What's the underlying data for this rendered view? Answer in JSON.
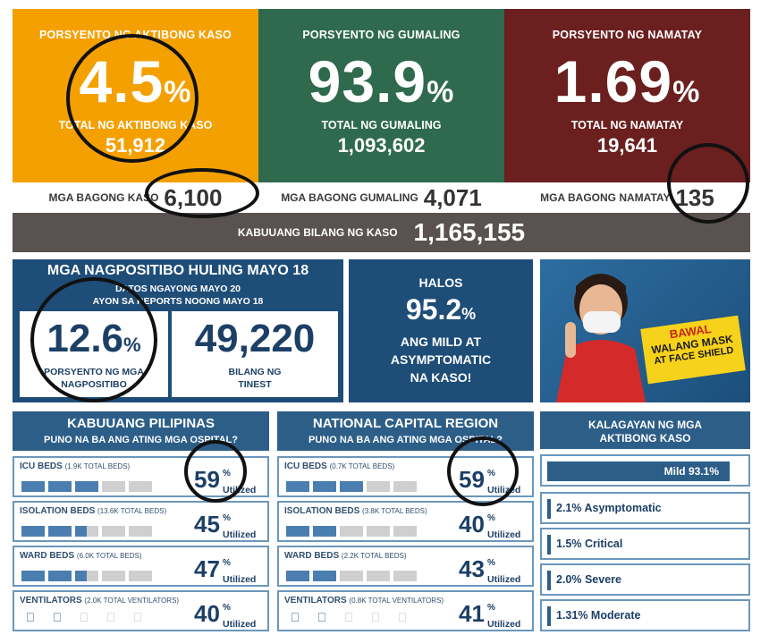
{
  "top_stats": {
    "active": {
      "label": "PORSYENTO NG AKTIBONG KASO",
      "percent": "4.5",
      "sub_label": "TOTAL NG AKTIBONG KASO",
      "total": "51,912",
      "color": "#f4a000"
    },
    "recovered": {
      "label": "PORSYENTO NG GUMALING",
      "percent": "93.9",
      "sub_label": "TOTAL NG GUMALING",
      "total": "1,093,602",
      "color": "#2f6a4f"
    },
    "deaths": {
      "label": "PORSYENTO NG NAMATAY",
      "percent": "1.69",
      "sub_label": "TOTAL NG NAMATAY",
      "total": "19,641",
      "color": "#6b1f1f"
    },
    "pct_symbol": "%"
  },
  "new_cases": {
    "cases": {
      "label": "MGA BAGONG KASO",
      "value": "6,100"
    },
    "recovered": {
      "label": "MGA BAGONG GUMALING",
      "value": "4,071"
    },
    "deaths": {
      "label": "MGA BAGONG NAMATAY",
      "value": "135"
    }
  },
  "total_cases": {
    "label": "KABUUANG BILANG NG KASO",
    "value": "1,165,155"
  },
  "positivity": {
    "title": "MGA NAGPOSITIBO HULING MAYO 18",
    "subtitle_1": "DATOS NGAYONG MAYO 20",
    "subtitle_2": "AYON SA REPORTS NOONG MAYO 18",
    "rate": "12.6",
    "rate_label_1": "PORSYENTO NG MGA",
    "rate_label_2": "NAGPOSITIBO",
    "tests": "49,220",
    "tests_label_1": "BILANG NG",
    "tests_label_2": "TINEST"
  },
  "mild": {
    "line_1": "HALOS",
    "percent": "95.2",
    "line_2": "ANG MILD AT",
    "line_3": "ASYMPTOMATIC",
    "line_4": "NA KASO!"
  },
  "banner": {
    "line_1": "BAWAL",
    "line_2": "WALANG MASK",
    "line_3": "AT FACE SHIELD"
  },
  "utilized_label": "Utilized",
  "philippines": {
    "title": "KABUUANG PILIPINAS",
    "subtitle": "PUNO NA BA ANG ATING MGA OSPITAL?",
    "rows": [
      {
        "name": "ICU BEDS",
        "total": "(1.9K TOTAL BEDS)",
        "percent": "59",
        "fraction": 0.59,
        "kind": "bed"
      },
      {
        "name": "ISOLATION BEDS",
        "total": "(13.6K TOTAL BEDS)",
        "percent": "45",
        "fraction": 0.45,
        "kind": "bed"
      },
      {
        "name": "WARD BEDS",
        "total": "(6.0K TOTAL BEDS)",
        "percent": "47",
        "fraction": 0.47,
        "kind": "bed"
      },
      {
        "name": "VENTILATORS",
        "total": "(2.0K TOTAL VENTILATORS)",
        "percent": "40",
        "fraction": 0.4,
        "kind": "vent"
      }
    ]
  },
  "ncr": {
    "title": "NATIONAL CAPITAL REGION",
    "subtitle": "PUNO NA BA ANG ATING MGA OSPITAL?",
    "rows": [
      {
        "name": "ICU BEDS",
        "total": "(0.7K TOTAL BEDS)",
        "percent": "59",
        "fraction": 0.59,
        "kind": "bed"
      },
      {
        "name": "ISOLATION BEDS",
        "total": "(3.8K TOTAL BEDS)",
        "percent": "40",
        "fraction": 0.4,
        "kind": "bed"
      },
      {
        "name": "WARD BEDS",
        "total": "(2.2K TOTAL BEDS)",
        "percent": "43",
        "fraction": 0.43,
        "kind": "bed"
      },
      {
        "name": "VENTILATORS",
        "total": "(0.8K TOTAL VENTILATORS)",
        "percent": "41",
        "fraction": 0.41,
        "kind": "vent"
      }
    ]
  },
  "status": {
    "title_1": "KALAGAYAN NG MGA",
    "title_2": "AKTIBONG KASO",
    "mild": {
      "label": "Mild 93.1%",
      "fraction": 0.931
    },
    "items": [
      "2.1% Asymptomatic",
      "1.5% Critical",
      "2.0% Severe",
      "1.31% Moderate"
    ]
  }
}
